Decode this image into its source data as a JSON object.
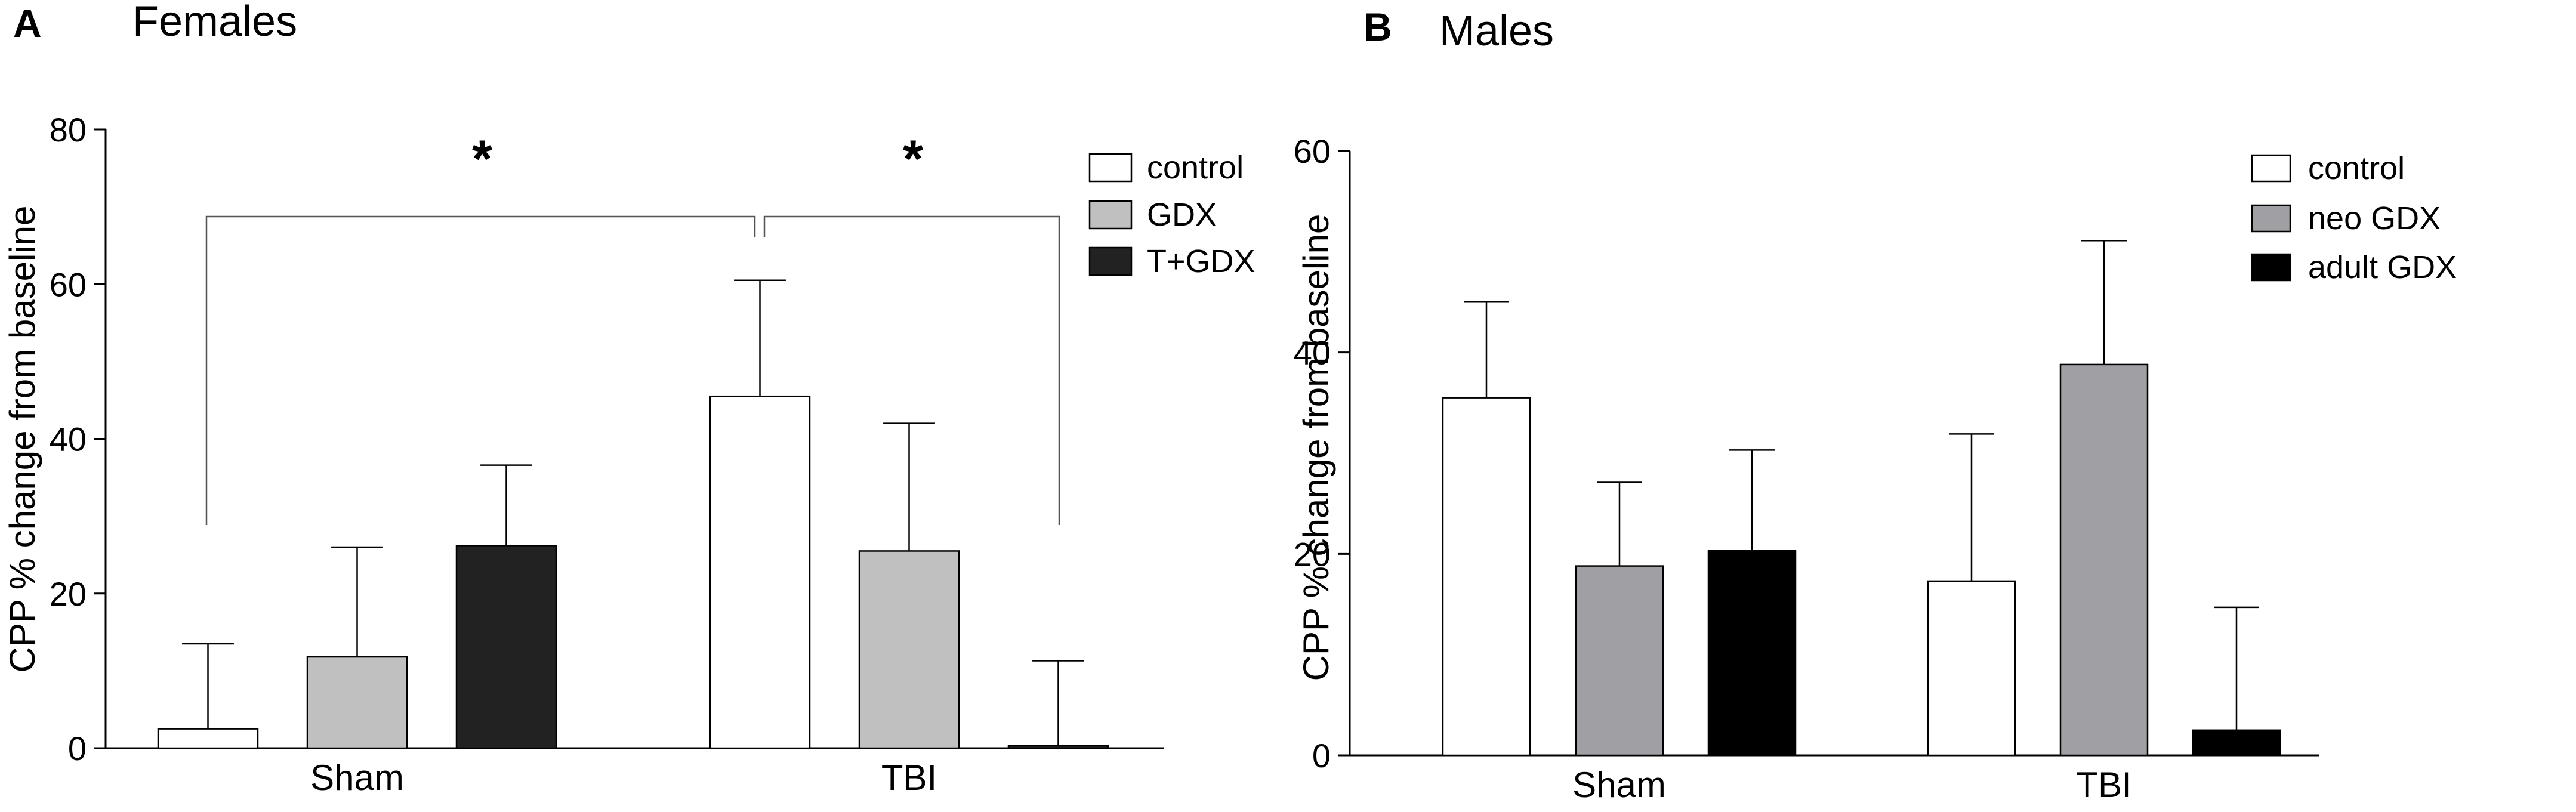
{
  "colors": {
    "control": "#ffffff",
    "gdx_female": "#c0c0c0",
    "tgdx_female": "#222222",
    "neo_gdx": "#a09fa3",
    "adult_gdx": "#000000",
    "axis": "#000000"
  },
  "chart_data": [
    {
      "type": "bar",
      "panel_label": "A",
      "title": "Females",
      "xlabel": "",
      "ylabel": "CPP % change from baseline",
      "ylim": [
        0,
        80
      ],
      "yticks": [
        0,
        20,
        40,
        60,
        80
      ],
      "categories": [
        "Sham",
        "TBI"
      ],
      "legend_position": "top-right",
      "series": [
        {
          "name": "control",
          "color_key": "control",
          "values": [
            2.5,
            45.5
          ],
          "errors": [
            11.0,
            15.0
          ]
        },
        {
          "name": "GDX",
          "color_key": "gdx_female",
          "values": [
            11.8,
            25.5
          ],
          "errors": [
            14.2,
            16.5
          ]
        },
        {
          "name": "T+GDX",
          "color_key": "tgdx_female",
          "values": [
            26.2,
            0.3
          ],
          "errors": [
            10.4,
            11.0
          ]
        }
      ],
      "annotations": [
        {
          "text": "*",
          "between": [
            "Sham control",
            "TBI control"
          ]
        },
        {
          "text": "*",
          "between": [
            "TBI control",
            "TBI T+GDX"
          ]
        }
      ]
    },
    {
      "type": "bar",
      "panel_label": "B",
      "title": "Males",
      "xlabel": "",
      "ylabel": "CPP % change from baseline",
      "ylim": [
        0,
        60
      ],
      "yticks": [
        0,
        20,
        40,
        60
      ],
      "categories": [
        "Sham",
        "TBI"
      ],
      "legend_position": "top-right",
      "series": [
        {
          "name": "control",
          "color_key": "control",
          "values": [
            35.5,
            17.3
          ],
          "errors": [
            9.5,
            14.6
          ]
        },
        {
          "name": "neo GDX",
          "color_key": "neo_gdx",
          "values": [
            18.8,
            38.8
          ],
          "errors": [
            8.3,
            12.3
          ]
        },
        {
          "name": "adult GDX",
          "color_key": "adult_gdx",
          "values": [
            20.3,
            2.5
          ],
          "errors": [
            10.0,
            12.2
          ]
        }
      ],
      "annotations": []
    }
  ]
}
